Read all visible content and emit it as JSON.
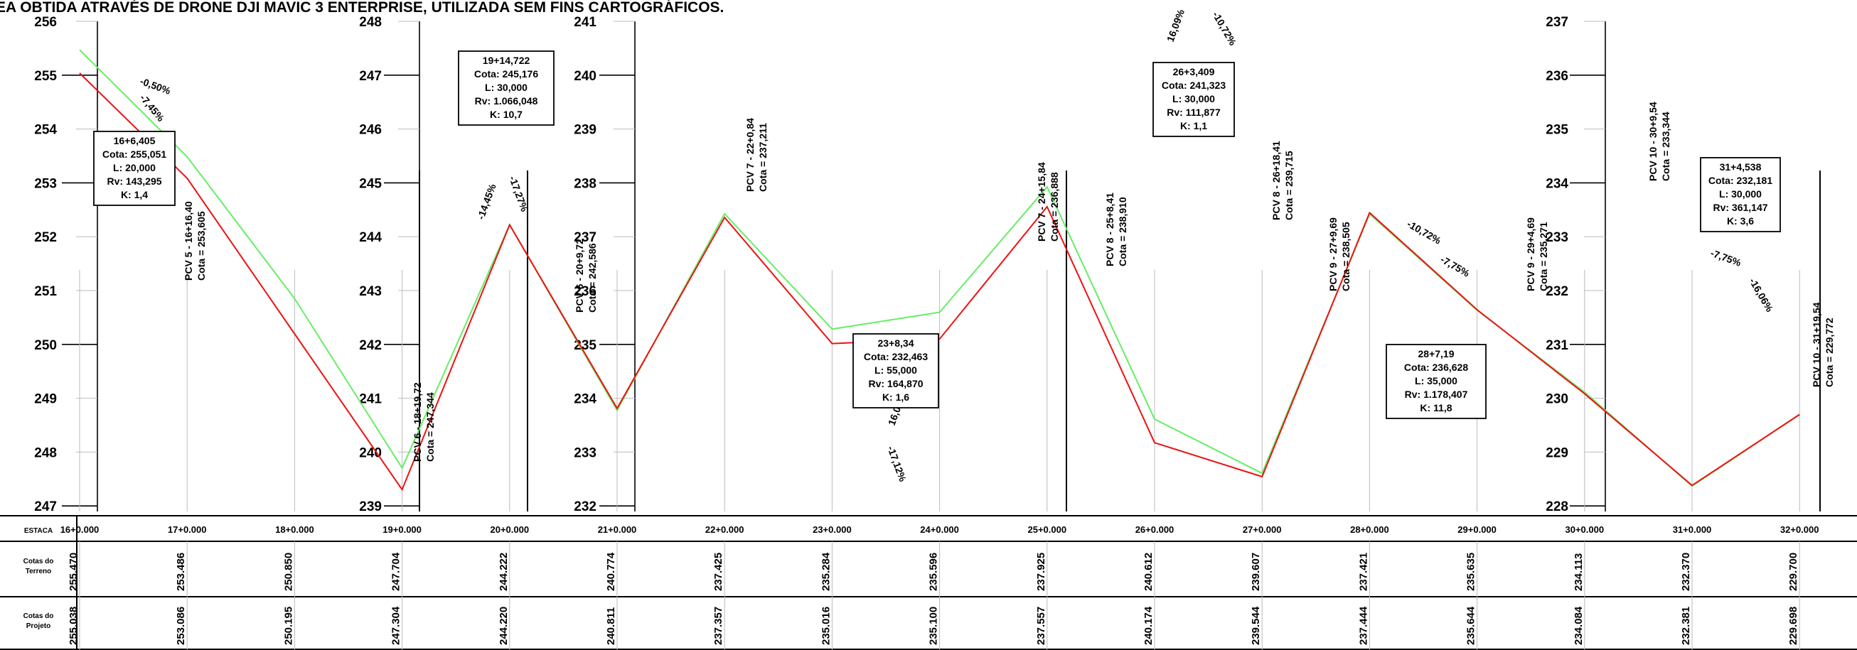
{
  "header": {
    "caption": "EA OBTIDA ATRAVÉS DE DRONE DJI MAVIC 3 ENTERPRISE, UTILIZADA SEM FINS CARTOGRÁFICOS."
  },
  "colors": {
    "terrain": "#66ee66",
    "project": "#ee1111",
    "axis": "#000000",
    "grid": "#bbbbbb"
  },
  "panels": [
    {
      "ticks": [
        "256",
        "255",
        "254",
        "253",
        "252",
        "251",
        "250",
        "249",
        "248",
        "247"
      ]
    },
    {
      "ticks": [
        "248",
        "247",
        "246",
        "245",
        "244",
        "243",
        "242",
        "241",
        "240",
        "239"
      ]
    },
    {
      "ticks": [
        "241",
        "240",
        "239",
        "238",
        "237",
        "236",
        "235",
        "234",
        "233",
        "232"
      ]
    },
    {
      "ticks": [
        "237",
        "236",
        "235",
        "234",
        "233",
        "232",
        "231",
        "230",
        "229",
        "228"
      ]
    }
  ],
  "verticals": [
    {
      "lines": [
        "16+6,405",
        "Cota: 255,051",
        "L: 20,000",
        "Rv: 143,295",
        "K: 1,4"
      ]
    },
    {
      "lines": [
        "19+14,722",
        "Cota: 245,176",
        "L: 30,000",
        "Rv: 1.066,048",
        "K: 10,7"
      ]
    },
    {
      "lines": [
        "23+8,34",
        "Cota: 232,463",
        "L: 55,000",
        "Rv: 164,870",
        "K: 1,6"
      ]
    },
    {
      "lines": [
        "26+3,409",
        "Cota: 241,323",
        "L: 30,000",
        "Rv: 111,877",
        "K: 1,1"
      ]
    },
    {
      "lines": [
        "28+7,19",
        "Cota: 236,628",
        "L: 35,000",
        "Rv: 1.178,407",
        "K: 11,8"
      ]
    },
    {
      "lines": [
        "31+4,538",
        "Cota: 232,181",
        "L: 30,000",
        "Rv: 361,147",
        "K: 3,6"
      ]
    }
  ],
  "vertical_labels": [
    [
      "PCV 5 - 16+16,40",
      "Cota = 253,605"
    ],
    [
      "PCV 6 - 18+19,72",
      "Cota = 247,344"
    ],
    [
      "PCV 6 - 20+9,72",
      "Cota = 242,586"
    ],
    [
      "PCV 7 - 22+0,84",
      "Cota = 237,211"
    ],
    [
      "PCV 7 - 24+15,84",
      "Cota = 236,888"
    ],
    [
      "PCV 8 - 25+8,41",
      "Cota = 238,910"
    ],
    [
      "PCV 8 - 26+18,41",
      "Cota = 239,715"
    ],
    [
      "PCV 9 - 27+9,69",
      "Cota = 238,505"
    ],
    [
      "PCV 9 - 29+4,69",
      "Cota = 235,271"
    ],
    [
      "PCV 10 - 30+9,54",
      "Cota = 233,344"
    ],
    [
      "PCV 10 - 31+19,54",
      "Cota = 229,772"
    ]
  ],
  "slopes": [
    "-0,50%",
    "-7,45%",
    "-14,45%",
    "-17,27%",
    "16,09%",
    "-10,72%",
    "-17,12%",
    "16,09%",
    "-10,72%",
    "-7,75%",
    "-7,75%",
    "-16,06%"
  ],
  "table": {
    "header_label": "ESTACA",
    "row1_label": [
      "Cotas do",
      "Terreno"
    ],
    "row2_label": [
      "Cotas do",
      "Projeto"
    ],
    "stations": [
      "16+0.000",
      "17+0.000",
      "18+0.000",
      "19+0.000",
      "20+0.000",
      "21+0.000",
      "22+0.000",
      "23+0.000",
      "24+0.000",
      "25+0.000",
      "26+0.000",
      "27+0.000",
      "28+0.000",
      "29+0.000",
      "30+0.000",
      "31+0.000",
      "32+0.000"
    ],
    "terrain": [
      "255.470",
      "253.486",
      "250.850",
      "247.704",
      "244.222",
      "240.774",
      "237.425",
      "235.284",
      "235.596",
      "237.925",
      "240.612",
      "239.607",
      "237.421",
      "235.635",
      "234.113",
      "232.370",
      "229.700"
    ],
    "project": [
      "255.038",
      "253.086",
      "250.195",
      "247.304",
      "244.220",
      "240.811",
      "237.357",
      "235.016",
      "235.100",
      "237.557",
      "240.174",
      "239.544",
      "237.444",
      "235.644",
      "234.084",
      "232.381",
      "229.698"
    ]
  }
}
